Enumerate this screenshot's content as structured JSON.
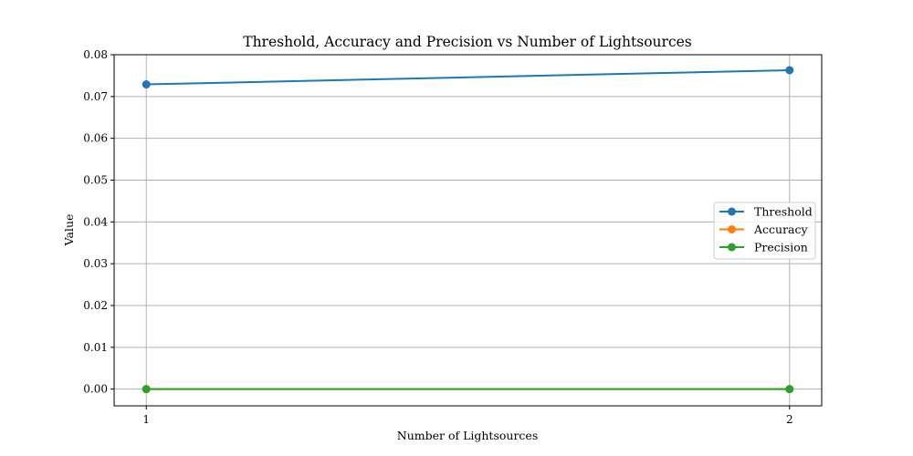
{
  "chart_data": {
    "type": "line",
    "title": "Threshold, Accuracy and Precision vs Number of Lightsources",
    "xlabel": "Number of Lightsources",
    "ylabel": "Value",
    "x": [
      1,
      2
    ],
    "x_tick_labels": [
      "1",
      "2"
    ],
    "xlim": [
      0.95,
      2.05
    ],
    "ylim": [
      -0.004,
      0.08
    ],
    "y_ticks": [
      0.0,
      0.01,
      0.02,
      0.03,
      0.04,
      0.05,
      0.06,
      0.07,
      0.08
    ],
    "y_tick_labels": [
      "0.00",
      "0.01",
      "0.02",
      "0.03",
      "0.04",
      "0.05",
      "0.06",
      "0.07",
      "0.08"
    ],
    "grid": true,
    "legend_position": "center-right",
    "series": [
      {
        "name": "Threshold",
        "values": [
          0.0729,
          0.0763
        ],
        "color": "#1f77b4"
      },
      {
        "name": "Accuracy",
        "values": [
          0.0,
          0.0
        ],
        "color": "#ff7f0e"
      },
      {
        "name": "Precision",
        "values": [
          0.0,
          0.0
        ],
        "color": "#2ca02c"
      }
    ]
  }
}
